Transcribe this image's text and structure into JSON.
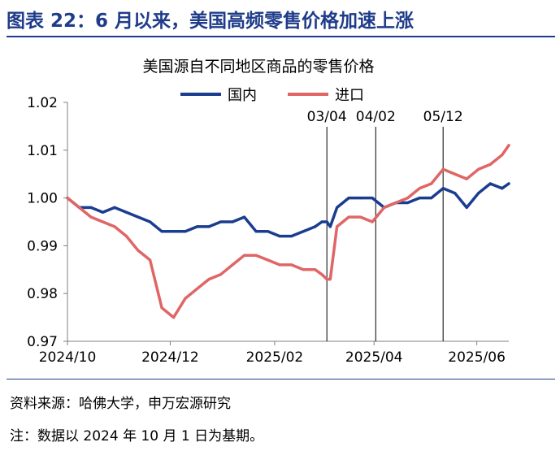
{
  "figure_title": "图表 22：6 月以来，美国高频零售价格加速上涨",
  "source": "资料来源：哈佛大学，申万宏源研究",
  "note": "注：数据以 2024 年 10 月 1 日为基期。",
  "colors": {
    "title": "#1f3c8a",
    "series_domestic": "#1a3d8f",
    "series_import": "#e06666",
    "axis": "#7f7f7f"
  },
  "chart_data": {
    "type": "line",
    "title": "美国源自不同地区商品的零售价格",
    "xlabel": "",
    "ylabel": "",
    "x_ticks": [
      "2024/10",
      "2024/12",
      "2025/02",
      "2025/04",
      "2025/06"
    ],
    "ylim": [
      0.97,
      1.02
    ],
    "y_ticks": [
      "0.97",
      "0.98",
      "0.99",
      "1.00",
      "1.01",
      "1.02"
    ],
    "grid": false,
    "legend_position": "top-center",
    "annotations": [
      "03/04",
      "04/02",
      "05/12"
    ],
    "x": [
      "2024-10-01",
      "2024-10-08",
      "2024-10-15",
      "2024-10-22",
      "2024-10-29",
      "2024-11-05",
      "2024-11-12",
      "2024-11-19",
      "2024-11-26",
      "2024-12-03",
      "2024-12-10",
      "2024-12-17",
      "2024-12-24",
      "2024-12-31",
      "2025-01-07",
      "2025-01-14",
      "2025-01-21",
      "2025-01-28",
      "2025-02-04",
      "2025-02-11",
      "2025-02-18",
      "2025-02-25",
      "2025-03-01",
      "2025-03-04",
      "2025-03-06",
      "2025-03-10",
      "2025-03-17",
      "2025-03-24",
      "2025-03-31",
      "2025-04-07",
      "2025-04-14",
      "2025-04-21",
      "2025-04-28",
      "2025-05-05",
      "2025-05-12",
      "2025-05-19",
      "2025-05-26",
      "2025-06-02",
      "2025-06-09",
      "2025-06-16",
      "2025-06-20"
    ],
    "series": [
      {
        "name": "国内",
        "values": [
          1.0,
          0.998,
          0.998,
          0.997,
          0.998,
          0.997,
          0.996,
          0.995,
          0.993,
          0.993,
          0.993,
          0.994,
          0.994,
          0.995,
          0.995,
          0.996,
          0.993,
          0.993,
          0.992,
          0.992,
          0.993,
          0.994,
          0.995,
          0.995,
          0.994,
          0.998,
          1.0,
          1.0,
          1.0,
          0.998,
          0.999,
          0.999,
          1.0,
          1.0,
          1.002,
          1.001,
          0.998,
          1.001,
          1.003,
          1.002,
          1.003
        ]
      },
      {
        "name": "进口",
        "values": [
          1.0,
          0.998,
          0.996,
          0.995,
          0.994,
          0.992,
          0.989,
          0.987,
          0.977,
          0.975,
          0.979,
          0.981,
          0.983,
          0.984,
          0.986,
          0.988,
          0.988,
          0.987,
          0.986,
          0.986,
          0.985,
          0.985,
          0.984,
          0.983,
          0.983,
          0.994,
          0.996,
          0.996,
          0.995,
          0.998,
          0.999,
          1.0,
          1.002,
          1.003,
          1.006,
          1.005,
          1.004,
          1.006,
          1.007,
          1.009,
          1.011
        ]
      }
    ]
  }
}
